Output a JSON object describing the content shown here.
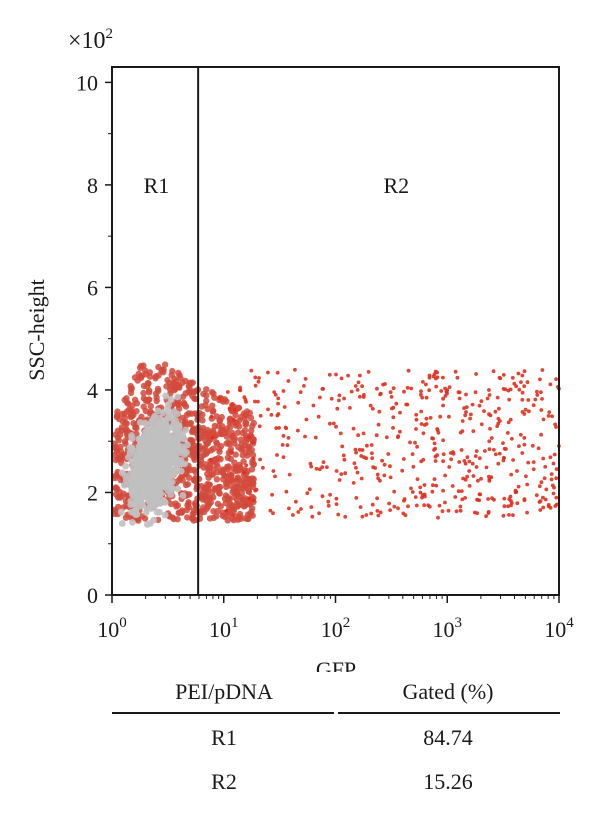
{
  "chart_data": {
    "type": "scatter",
    "xlabel": "GFP",
    "ylabel": "SSC-height",
    "y_multiplier_label": "×10²",
    "xscale": "log",
    "xlim": [
      1,
      10000
    ],
    "ylim": [
      0,
      10.3
    ],
    "x_ticks": [
      {
        "value": 1,
        "base": "10",
        "exp": "0"
      },
      {
        "value": 10,
        "base": "10",
        "exp": "1"
      },
      {
        "value": 100,
        "base": "10",
        "exp": "2"
      },
      {
        "value": 1000,
        "base": "10",
        "exp": "3"
      },
      {
        "value": 10000,
        "base": "10",
        "exp": "4"
      }
    ],
    "y_ticks": [
      0,
      2,
      4,
      6,
      8,
      10
    ],
    "gate_x": 5.9,
    "regions": [
      {
        "label": "R1",
        "x": 2.5,
        "y": 8
      },
      {
        "label": "R2",
        "x": 350,
        "y": 8
      }
    ],
    "colors": {
      "dense": "#c0c0c0",
      "mid": "#d24a3c",
      "sparse": "#e0301e",
      "frame": "#1a1a1a"
    }
  },
  "table": {
    "headers": [
      "PEI/pDNA",
      "Gated (%)"
    ],
    "rows": [
      [
        "R1",
        "84.74"
      ],
      [
        "R2",
        "15.26"
      ]
    ]
  }
}
